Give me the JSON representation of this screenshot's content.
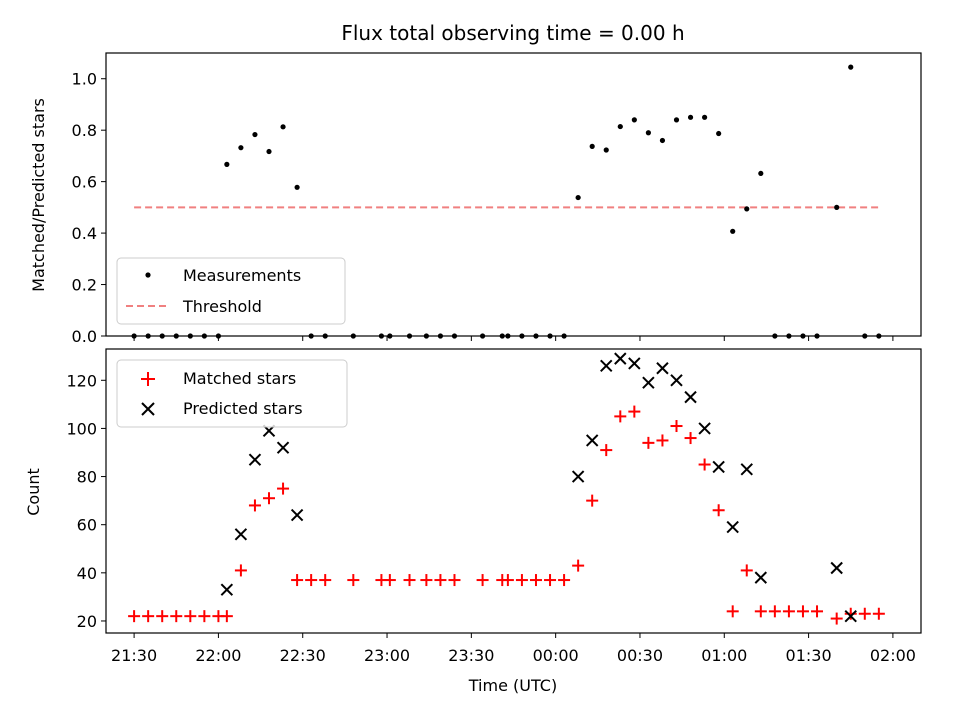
{
  "chart_data": [
    {
      "type": "scatter",
      "title": "Flux total observing time = 0.00 h",
      "ylabel": "Matched/Predicted stars",
      "xlim": [
        "21:20",
        "02:10"
      ],
      "ylim": [
        0,
        1.1
      ],
      "yticks": [
        "0.0",
        "0.2",
        "0.4",
        "0.6",
        "0.8",
        "1.0"
      ],
      "legend_position": "lower-left",
      "grid": false,
      "series": [
        {
          "name": "Measurements",
          "marker": "dot",
          "color": "#000000",
          "points": [
            [
              "21:30",
              0
            ],
            [
              "21:35",
              0
            ],
            [
              "21:40",
              0
            ],
            [
              "21:45",
              0
            ],
            [
              "21:50",
              0
            ],
            [
              "21:55",
              0
            ],
            [
              "22:00",
              0
            ],
            [
              "22:03",
              0.667
            ],
            [
              "22:08",
              0.732
            ],
            [
              "22:13",
              0.783
            ],
            [
              "22:18",
              0.717
            ],
            [
              "22:23",
              0.813
            ],
            [
              "22:28",
              0.578
            ],
            [
              "22:33",
              0
            ],
            [
              "22:38",
              0
            ],
            [
              "22:48",
              0
            ],
            [
              "22:58",
              0
            ],
            [
              "23:01",
              0
            ],
            [
              "23:08",
              0
            ],
            [
              "23:14",
              0
            ],
            [
              "23:19",
              0
            ],
            [
              "23:24",
              0
            ],
            [
              "23:34",
              0
            ],
            [
              "23:41",
              0
            ],
            [
              "23:43",
              0
            ],
            [
              "23:48",
              0
            ],
            [
              "23:53",
              0
            ],
            [
              "23:58",
              0
            ],
            [
              "00:03",
              0
            ],
            [
              "00:08",
              0.538
            ],
            [
              "00:13",
              0.737
            ],
            [
              "00:18",
              0.723
            ],
            [
              "00:23",
              0.814
            ],
            [
              "00:28",
              0.84
            ],
            [
              "00:33",
              0.79
            ],
            [
              "00:38",
              0.76
            ],
            [
              "00:43",
              0.84
            ],
            [
              "00:48",
              0.85
            ],
            [
              "00:53",
              0.85
            ],
            [
              "00:58",
              0.787
            ],
            [
              "01:03",
              0.407
            ],
            [
              "01:08",
              0.494
            ],
            [
              "01:13",
              0.632
            ],
            [
              "01:18",
              0
            ],
            [
              "01:23",
              0
            ],
            [
              "01:28",
              0
            ],
            [
              "01:33",
              0
            ],
            [
              "01:40",
              0.5
            ],
            [
              "01:45",
              1.045
            ],
            [
              "01:50",
              0
            ],
            [
              "01:55",
              0
            ]
          ]
        },
        {
          "name": "Threshold",
          "style": "dashed",
          "color": "#f08080",
          "points": [
            [
              "21:30",
              0.5
            ],
            [
              "01:55",
              0.5
            ]
          ]
        }
      ]
    },
    {
      "type": "scatter",
      "xlabel": "Time (UTC)",
      "ylabel": "Count",
      "xlim": [
        "21:20",
        "02:10"
      ],
      "ylim": [
        15,
        133
      ],
      "xticks": [
        "21:30",
        "22:00",
        "22:30",
        "23:00",
        "23:30",
        "00:00",
        "00:30",
        "01:00",
        "01:30",
        "02:00"
      ],
      "yticks": [
        "20",
        "40",
        "60",
        "80",
        "100",
        "120"
      ],
      "legend_position": "upper-left",
      "grid": false,
      "series": [
        {
          "name": "Matched stars",
          "marker": "plus",
          "color": "#ff0000",
          "points": [
            [
              "21:30",
              22
            ],
            [
              "21:35",
              22
            ],
            [
              "21:40",
              22
            ],
            [
              "21:45",
              22
            ],
            [
              "21:50",
              22
            ],
            [
              "21:55",
              22
            ],
            [
              "22:00",
              22
            ],
            [
              "22:03",
              22
            ],
            [
              "22:08",
              41
            ],
            [
              "22:13",
              68
            ],
            [
              "22:18",
              71
            ],
            [
              "22:23",
              75
            ],
            [
              "22:28",
              37
            ],
            [
              "22:33",
              37
            ],
            [
              "22:38",
              37
            ],
            [
              "22:48",
              37
            ],
            [
              "22:58",
              37
            ],
            [
              "23:01",
              37
            ],
            [
              "23:08",
              37
            ],
            [
              "23:14",
              37
            ],
            [
              "23:19",
              37
            ],
            [
              "23:24",
              37
            ],
            [
              "23:34",
              37
            ],
            [
              "23:41",
              37
            ],
            [
              "23:43",
              37
            ],
            [
              "23:48",
              37
            ],
            [
              "23:53",
              37
            ],
            [
              "23:58",
              37
            ],
            [
              "00:03",
              37
            ],
            [
              "00:08",
              43
            ],
            [
              "00:13",
              70
            ],
            [
              "00:18",
              91
            ],
            [
              "00:23",
              105
            ],
            [
              "00:28",
              107
            ],
            [
              "00:33",
              94
            ],
            [
              "00:38",
              95
            ],
            [
              "00:43",
              101
            ],
            [
              "00:48",
              96
            ],
            [
              "00:53",
              85
            ],
            [
              "00:58",
              66
            ],
            [
              "01:03",
              24
            ],
            [
              "01:08",
              41
            ],
            [
              "01:13",
              24
            ],
            [
              "01:18",
              24
            ],
            [
              "01:23",
              24
            ],
            [
              "01:28",
              24
            ],
            [
              "01:33",
              24
            ],
            [
              "01:40",
              21
            ],
            [
              "01:45",
              23
            ],
            [
              "01:50",
              23
            ],
            [
              "01:55",
              23
            ]
          ]
        },
        {
          "name": "Predicted stars",
          "marker": "x",
          "color": "#000000",
          "points": [
            [
              "22:03",
              33
            ],
            [
              "22:08",
              56
            ],
            [
              "22:13",
              87
            ],
            [
              "22:18",
              99
            ],
            [
              "22:23",
              92
            ],
            [
              "22:28",
              64
            ],
            [
              "00:08",
              80
            ],
            [
              "00:13",
              95
            ],
            [
              "00:18",
              126
            ],
            [
              "00:23",
              129
            ],
            [
              "00:28",
              127
            ],
            [
              "00:33",
              119
            ],
            [
              "00:38",
              125
            ],
            [
              "00:43",
              120
            ],
            [
              "00:48",
              113
            ],
            [
              "00:53",
              100
            ],
            [
              "00:58",
              84
            ],
            [
              "01:03",
              59
            ],
            [
              "01:08",
              83
            ],
            [
              "01:13",
              38
            ],
            [
              "01:40",
              42
            ],
            [
              "01:45",
              22
            ]
          ]
        }
      ]
    }
  ]
}
